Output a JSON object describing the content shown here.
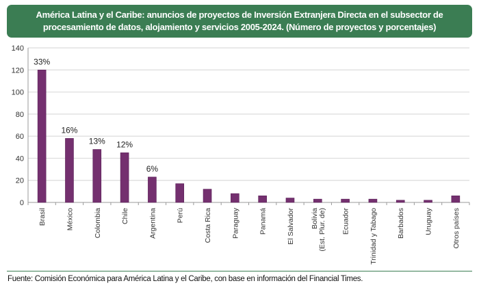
{
  "header": {
    "title": "América Latina y el Caribe: anuncios de proyectos de Inversión Extranjera Directa en el subsector de procesamiento de datos, alojamiento y servicios 2005-2024. (Número de proyectos y porcentajes)"
  },
  "chart_data": {
    "type": "bar",
    "title": "América Latina y el Caribe: anuncios de proyectos de Inversión Extranjera Directa en el subsector de procesamiento de datos, alojamiento y servicios 2005-2024. (Número de proyectos y porcentajes)",
    "categories": [
      "Brasil",
      "México",
      "Colombia",
      "Chile",
      "Argentina",
      "Perú",
      "Costa Rica",
      "Paraguay",
      "Panamá",
      "El Salvador",
      "Bolivia (Est. Plur. de)",
      "Ecuador",
      "Trinidad y Tabago",
      "Barbados",
      "Uruguay",
      "Otros países"
    ],
    "category_lines": [
      [
        "Brasil"
      ],
      [
        "México"
      ],
      [
        "Colombia"
      ],
      [
        "Chile"
      ],
      [
        "Argentina"
      ],
      [
        "Perú"
      ],
      [
        "Costa Rica"
      ],
      [
        "Paraguay"
      ],
      [
        "Panamá"
      ],
      [
        "El Salvador"
      ],
      [
        "Bolivia",
        "(Est. Plur. de)"
      ],
      [
        "Ecuador"
      ],
      [
        "Trinidad y Tabago"
      ],
      [
        "Barbados"
      ],
      [
        "Uruguay"
      ],
      [
        "Otros países"
      ]
    ],
    "values": [
      120,
      58,
      48,
      45,
      23,
      17,
      12,
      8,
      6,
      4,
      3,
      3,
      3,
      2,
      2,
      6
    ],
    "data_labels": [
      "33%",
      "16%",
      "13%",
      "12%",
      "6%",
      "",
      "",
      "",
      "",
      "",
      "",
      "",
      "",
      "",
      "",
      ""
    ],
    "xlabel": "",
    "ylabel": "",
    "ylim": [
      0,
      140
    ],
    "yticks": [
      0,
      20,
      40,
      60,
      80,
      100,
      120,
      140
    ],
    "grid": true,
    "bar_color": "#74306f"
  },
  "footer": {
    "source": "Fuente: Comisión Económica para América Latina y el Caribe, con base en información del Financial Times."
  }
}
